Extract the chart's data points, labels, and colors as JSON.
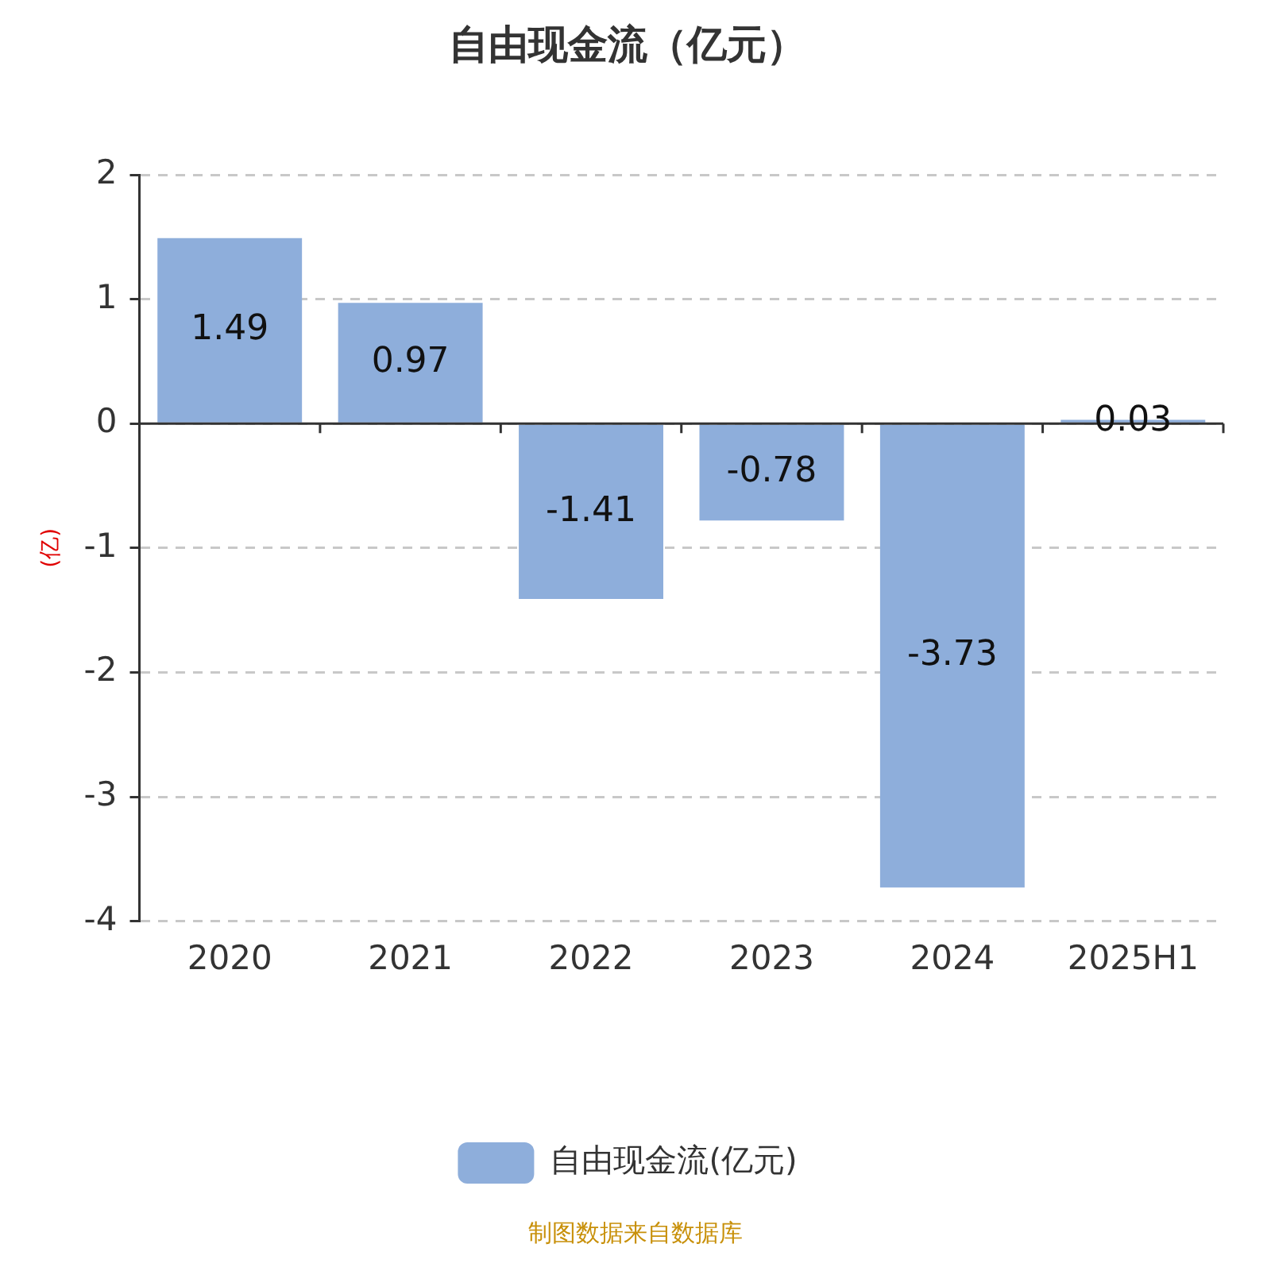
{
  "chart_data": {
    "type": "bar",
    "title": "自由现金流（亿元）",
    "ylabel": "(亿)",
    "categories": [
      "2020",
      "2021",
      "2022",
      "2023",
      "2024",
      "2025H1"
    ],
    "series": [
      {
        "name": "自由现金流(亿元)",
        "color": "#8eaedb",
        "values": [
          1.49,
          0.97,
          -1.41,
          -0.78,
          -3.73,
          0.03
        ]
      }
    ],
    "ylim": [
      -4,
      2
    ],
    "yticks": [
      -4,
      -3,
      -2,
      -1,
      0,
      1,
      2
    ],
    "grid": "y",
    "legend": "bottom",
    "data_labels": true,
    "annotations": [
      "制图数据来自数据库"
    ]
  }
}
